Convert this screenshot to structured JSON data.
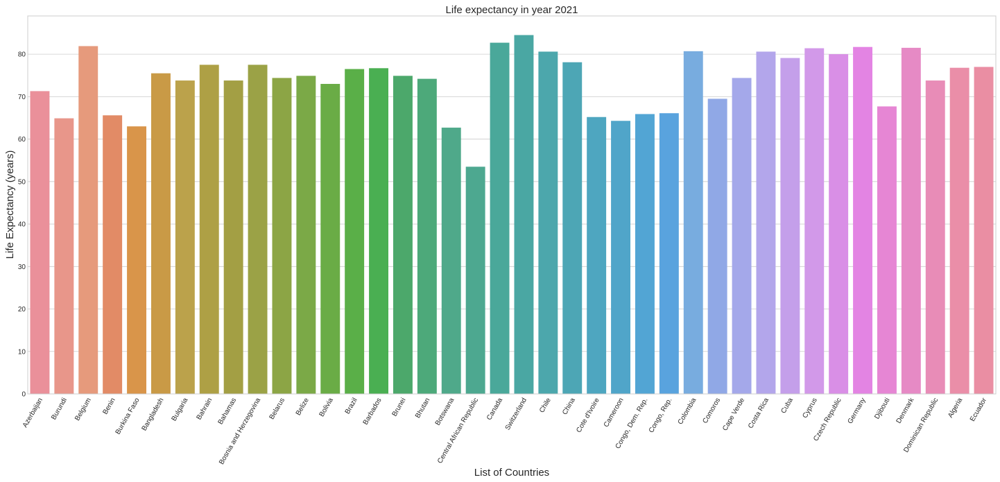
{
  "chart_data": {
    "type": "bar",
    "title": "Life expectancy in year 2021",
    "xlabel": "List of Countries",
    "ylabel": "Life Expectancy (years)",
    "ylim": [
      0,
      89
    ],
    "yticks": [
      0,
      10,
      20,
      30,
      40,
      50,
      60,
      70,
      80
    ],
    "grid": "horizontal",
    "categories": [
      "Azerbaijan",
      "Burundi",
      "Belgium",
      "Benin",
      "Burkina Faso",
      "Bangladesh",
      "Bulgaria",
      "Bahrain",
      "Bahamas",
      "Bosnia and Herzegovina",
      "Belarus",
      "Belize",
      "Bolivia",
      "Brazil",
      "Barbados",
      "Brunei",
      "Bhutan",
      "Botswana",
      "Central African Republic",
      "Canada",
      "Switzerland",
      "Chile",
      "China",
      "Cote d'Ivoire",
      "Cameroon",
      "Congo, Dem. Rep.",
      "Congo, Rep.",
      "Colombia",
      "Comoros",
      "Cape Verde",
      "Costa Rica",
      "Cuba",
      "Cyprus",
      "Czech Republic",
      "Germany",
      "Djibouti",
      "Denmark",
      "Dominican Republic",
      "Algeria",
      "Ecuador"
    ],
    "values": [
      71.3,
      64.9,
      81.9,
      65.6,
      63.0,
      75.5,
      73.8,
      77.5,
      73.8,
      77.5,
      74.4,
      74.9,
      73.0,
      76.5,
      76.7,
      74.9,
      74.2,
      62.7,
      53.5,
      82.7,
      84.5,
      80.6,
      78.1,
      65.2,
      64.3,
      65.9,
      66.1,
      80.7,
      69.5,
      74.4,
      80.6,
      79.1,
      81.4,
      80.0,
      81.7,
      67.7,
      81.5,
      73.8,
      76.8,
      77.0
    ],
    "colors": [
      "#ea909a",
      "#e8968a",
      "#e69a7c",
      "#e28b66",
      "#d9954a",
      "#c99a46",
      "#bba24b",
      "#aea045",
      "#a39f44",
      "#9ba246",
      "#8ca545",
      "#7ba947",
      "#6aac46",
      "#5aaf48",
      "#4aaf52",
      "#4ca86b",
      "#4da97a",
      "#4fa98a",
      "#4da890",
      "#4aa89a",
      "#4aa7a3",
      "#4ca7ac",
      "#4da6b5",
      "#4ea6c0",
      "#50a5c9",
      "#52a5d4",
      "#59a3de",
      "#78acdf",
      "#90a8e6",
      "#a4a8ea",
      "#b3a6eb",
      "#c49fea",
      "#d299e9",
      "#d98fe6",
      "#e384e3",
      "#e686d4",
      "#e68ac5",
      "#e88cb7",
      "#ea8ea8",
      "#ea8ea3"
    ]
  }
}
